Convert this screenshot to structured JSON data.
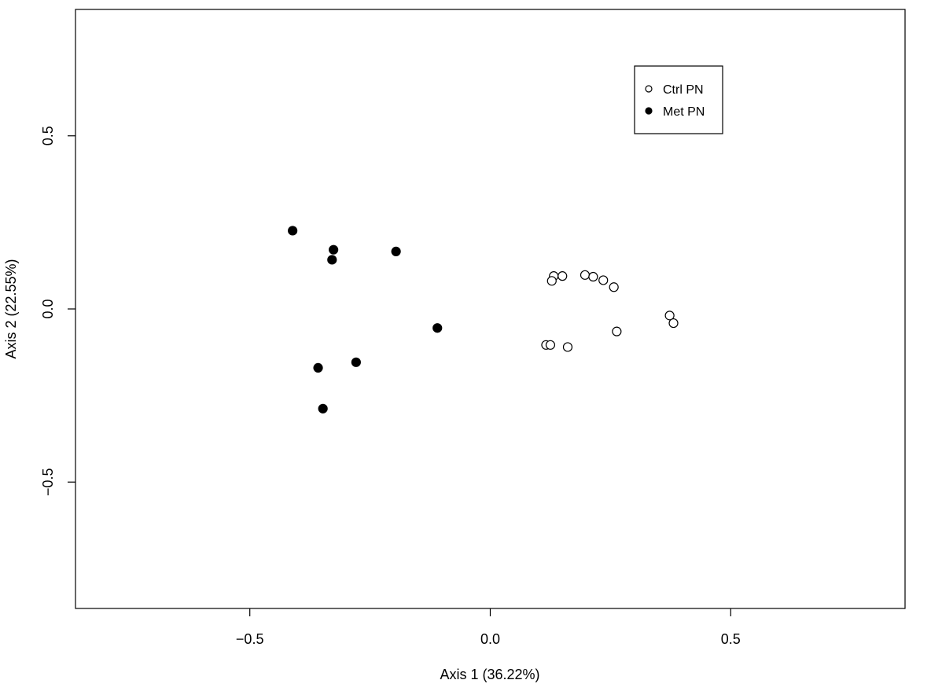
{
  "chart_data": {
    "type": "scatter",
    "xlabel": "Axis 1 (36.22%)",
    "ylabel": "Axis 2 (22.55%)",
    "xlim": [
      -0.8625,
      0.8625
    ],
    "ylim": [
      -0.865,
      0.865
    ],
    "x_ticks": [
      {
        "value": -0.5,
        "label": "−0.5"
      },
      {
        "value": 0.0,
        "label": "0.0"
      },
      {
        "value": 0.5,
        "label": "0.5"
      }
    ],
    "y_ticks": [
      {
        "value": -0.5,
        "label": "−0.5"
      },
      {
        "value": 0.0,
        "label": "0.0"
      },
      {
        "value": 0.5,
        "label": "0.5"
      }
    ],
    "grid": false,
    "legend_position": "top-right",
    "series": [
      {
        "name": "Ctrl PN",
        "marker": "open-circle",
        "color": "#000000",
        "points": [
          {
            "x": 0.132,
            "y": 0.095
          },
          {
            "x": 0.15,
            "y": 0.095
          },
          {
            "x": 0.128,
            "y": 0.081
          },
          {
            "x": 0.197,
            "y": 0.098
          },
          {
            "x": 0.214,
            "y": 0.093
          },
          {
            "x": 0.235,
            "y": 0.083
          },
          {
            "x": 0.257,
            "y": 0.063
          },
          {
            "x": 0.373,
            "y": -0.019
          },
          {
            "x": 0.381,
            "y": -0.041
          },
          {
            "x": 0.263,
            "y": -0.065
          },
          {
            "x": 0.116,
            "y": -0.104
          },
          {
            "x": 0.125,
            "y": -0.104
          },
          {
            "x": 0.161,
            "y": -0.11
          }
        ]
      },
      {
        "name": "Met PN",
        "marker": "filled-circle",
        "color": "#000000",
        "points": [
          {
            "x": -0.411,
            "y": 0.226
          },
          {
            "x": -0.326,
            "y": 0.171
          },
          {
            "x": -0.329,
            "y": 0.142
          },
          {
            "x": -0.196,
            "y": 0.166
          },
          {
            "x": -0.11,
            "y": -0.055
          },
          {
            "x": -0.279,
            "y": -0.154
          },
          {
            "x": -0.358,
            "y": -0.17
          },
          {
            "x": -0.348,
            "y": -0.288
          }
        ]
      }
    ]
  }
}
